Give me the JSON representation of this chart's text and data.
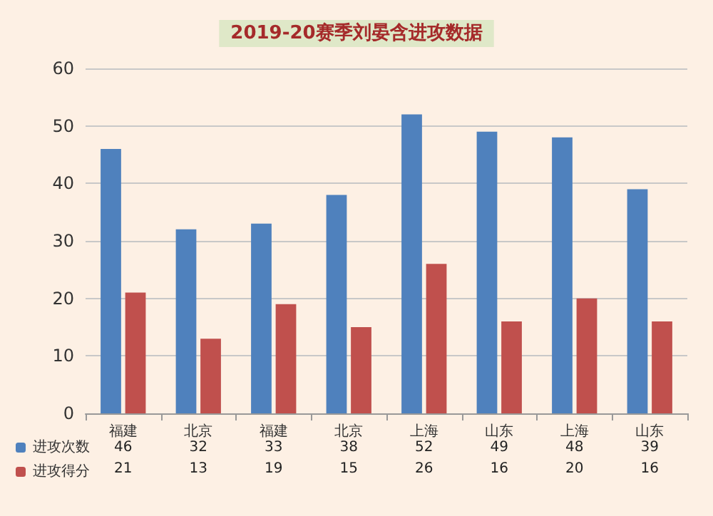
{
  "chart_data": {
    "type": "bar",
    "title": "2019-20赛季刘晏含进攻数据",
    "categories": [
      "福建",
      "北京",
      "福建",
      "北京",
      "上海",
      "山东",
      "上海",
      "山东"
    ],
    "series": [
      {
        "name": "进攻次数",
        "color": "#4f81bd",
        "values": [
          46,
          32,
          33,
          38,
          52,
          49,
          48,
          39
        ]
      },
      {
        "name": "进攻得分",
        "color": "#c0504d",
        "values": [
          21,
          13,
          19,
          15,
          26,
          16,
          20,
          16
        ]
      }
    ],
    "ylim": [
      0,
      60
    ],
    "yticks": [
      0,
      10,
      20,
      30,
      40,
      50,
      60
    ],
    "grid": "y",
    "legend": "bottom",
    "data_labels": true
  }
}
